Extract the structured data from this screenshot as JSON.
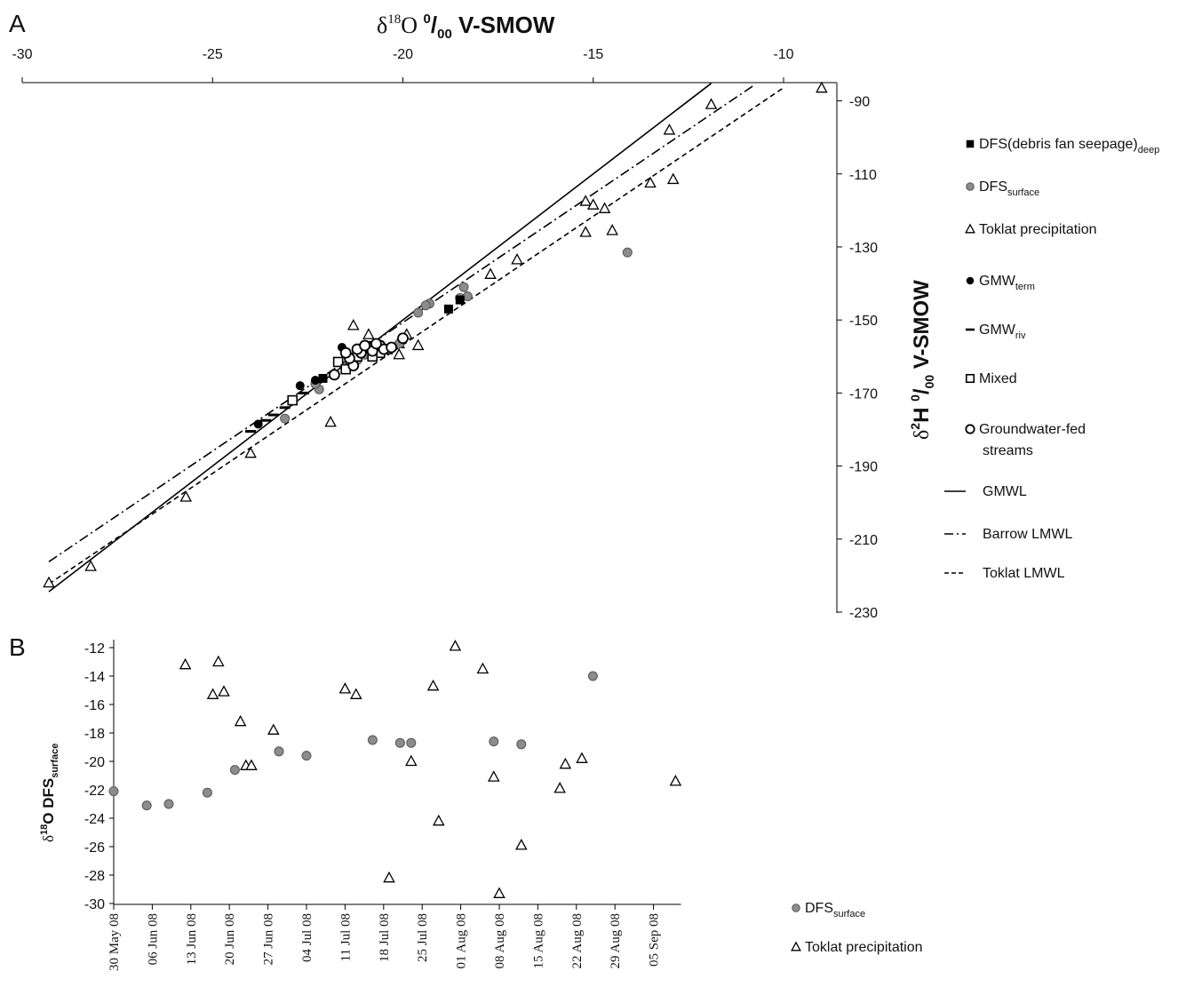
{
  "colors": {
    "axis": "#000000",
    "dfs_fill": "#8c8c8c",
    "dfs_stroke": "#555555",
    "black": "#000000",
    "white": "#ffffff"
  },
  "panel_a": {
    "label": "A",
    "top_axis_title": {
      "delta": "δ",
      "sup": "18",
      "elem": "O ",
      "permil_sup": "0",
      "permil_slash": "/",
      "permil_sub": "00",
      "tail": " V-SMOW"
    },
    "right_axis_title": {
      "delta": "δ",
      "sup": "2",
      "elem": "H ",
      "permil_sup": "0",
      "permil_slash": "/",
      "permil_sub": "00",
      "tail": " V-SMOW"
    }
  },
  "panel_b": {
    "label": "B",
    "y_axis_title": {
      "delta": "δ",
      "sup": "18",
      "elem": "O DFS",
      "sub": "surface"
    }
  },
  "legend_a": [
    {
      "key": "dfs_deep",
      "marker": "square-black",
      "text": "DFS(debris fan seepage)",
      "sub": "deep"
    },
    {
      "key": "dfs_surface",
      "marker": "circle-gray",
      "text": "DFS",
      "sub": "surface"
    },
    {
      "key": "toklat",
      "marker": "triangle",
      "text": "Toklat precipitation",
      "sub": ""
    },
    {
      "key": "gmw_term",
      "marker": "circle-black",
      "text": "GMW",
      "sub": "term"
    },
    {
      "key": "gmw_riv",
      "marker": "dash",
      "text": "GMW",
      "sub": "riv"
    },
    {
      "key": "mixed",
      "marker": "square-open",
      "text": "Mixed",
      "sub": ""
    },
    {
      "key": "gw_streams",
      "marker": "circle-open",
      "text": "Groundwater-fed",
      "text2": "streams",
      "sub": ""
    },
    {
      "key": "gmwl",
      "marker": "line-solid",
      "text": "GMWL",
      "sub": ""
    },
    {
      "key": "barrow",
      "marker": "line-dashdot",
      "text": "Barrow LMWL",
      "sub": ""
    },
    {
      "key": "toklat_lmwl",
      "marker": "line-dashed",
      "text": "Toklat LMWL",
      "sub": ""
    }
  ],
  "legend_b": [
    {
      "key": "dfs_surface",
      "marker": "circle-gray",
      "text": "DFS",
      "sub": "surface"
    },
    {
      "key": "toklat",
      "marker": "triangle",
      "text": "Toklat precipitation",
      "sub": ""
    }
  ],
  "chart_data": [
    {
      "type": "scatter",
      "panel": "A",
      "xlabel": "δ18O ‰ V-SMOW",
      "ylabel": "δ2H ‰ V-SMOW",
      "x_axis_position": "top",
      "y_axis_position": "right",
      "xlim": [
        -30,
        -8.5
      ],
      "ylim": [
        -230,
        -85
      ],
      "x_ticks": [
        -30,
        -25,
        -20,
        -15,
        -10
      ],
      "y_ticks": [
        -90,
        -110,
        -130,
        -150,
        -170,
        -190,
        -210,
        -230
      ],
      "legend_position": "right",
      "lines": [
        {
          "name": "GMWL",
          "style": "solid",
          "x": [
            -29.3,
            -11.9
          ],
          "y": [
            -224.4,
            -85.2
          ]
        },
        {
          "name": "Barrow LMWL",
          "style": "dash-dot",
          "x": [
            -29.3,
            -10.8
          ],
          "y": [
            -216.2,
            -85.9
          ]
        },
        {
          "name": "Toklat LMWL",
          "style": "dashed",
          "x": [
            -29.3,
            -10.0
          ],
          "y": [
            -222.3,
            -86.4
          ]
        }
      ],
      "series": [
        {
          "name": "DFS(debris fan seepage) deep",
          "marker": "square-black",
          "points": [
            [
              -18.8,
              -147.0
            ],
            [
              -18.5,
              -144.5
            ],
            [
              -20.9,
              -157.0
            ],
            [
              -22.1,
              -166.0
            ]
          ]
        },
        {
          "name": "DFS surface",
          "marker": "circle-gray",
          "points": [
            [
              -18.4,
              -141.0
            ],
            [
              -18.3,
              -143.5
            ],
            [
              -18.5,
              -144.0
            ],
            [
              -19.3,
              -145.5
            ],
            [
              -19.6,
              -148.0
            ],
            [
              -19.4,
              -146.0
            ],
            [
              -20.1,
              -156.5
            ],
            [
              -21.2,
              -161.0
            ],
            [
              -22.2,
              -169.0
            ],
            [
              -23.1,
              -177.0
            ],
            [
              -14.1,
              -131.5
            ],
            [
              -22.3,
              -167.5
            ],
            [
              -21.0,
              -159.5
            ]
          ]
        },
        {
          "name": "Toklat precipitation",
          "marker": "triangle",
          "points": [
            [
              -9.0,
              -86.5
            ],
            [
              -11.9,
              -91.0
            ],
            [
              -13.0,
              -98.0
            ],
            [
              -13.5,
              -112.5
            ],
            [
              -12.9,
              -111.5
            ],
            [
              -15.2,
              -117.5
            ],
            [
              -15.0,
              -118.5
            ],
            [
              -14.7,
              -119.5
            ],
            [
              -14.5,
              -125.5
            ],
            [
              -15.2,
              -126.0
            ],
            [
              -17.0,
              -133.5
            ],
            [
              -17.7,
              -137.5
            ],
            [
              -19.6,
              -157.0
            ],
            [
              -20.1,
              -159.5
            ],
            [
              -20.1,
              -156.5
            ],
            [
              -19.9,
              -154.0
            ],
            [
              -21.3,
              -151.5
            ],
            [
              -20.9,
              -154.0
            ],
            [
              -21.9,
              -178.0
            ],
            [
              -24.0,
              -186.5
            ],
            [
              -25.7,
              -198.5
            ],
            [
              -28.2,
              -217.5
            ],
            [
              -29.3,
              -222.0
            ]
          ]
        },
        {
          "name": "GMW term",
          "marker": "circle-black",
          "points": [
            [
              -21.6,
              -157.5
            ],
            [
              -22.7,
              -168.0
            ],
            [
              -23.8,
              -178.5
            ],
            [
              -22.3,
              -166.5
            ]
          ]
        },
        {
          "name": "GMW riv",
          "marker": "dash",
          "points": [
            [
              -24.0,
              -180.5
            ],
            [
              -23.6,
              -177.5
            ],
            [
              -23.4,
              -176.0
            ],
            [
              -23.1,
              -174.0
            ],
            [
              -22.6,
              -170.0
            ]
          ]
        },
        {
          "name": "Mixed",
          "marker": "square-open",
          "points": [
            [
              -21.7,
              -161.5
            ],
            [
              -21.5,
              -163.5
            ],
            [
              -22.9,
              -172.0
            ],
            [
              -21.2,
              -160.0
            ],
            [
              -20.6,
              -159.0
            ],
            [
              -20.8,
              -160.0
            ],
            [
              -20.4,
              -158.0
            ]
          ]
        },
        {
          "name": "Groundwater-fed streams",
          "marker": "circle-open",
          "points": [
            [
              -21.8,
              -165.0
            ],
            [
              -21.3,
              -162.5
            ],
            [
              -21.4,
              -160.5
            ],
            [
              -21.1,
              -159.0
            ],
            [
              -21.2,
              -158.0
            ],
            [
              -20.9,
              -157.5
            ],
            [
              -20.8,
              -158.5
            ],
            [
              -20.6,
              -157.0
            ],
            [
              -20.5,
              -158.0
            ],
            [
              -20.3,
              -157.5
            ],
            [
              -20.0,
              -155.0
            ],
            [
              -21.0,
              -157.0
            ],
            [
              -21.5,
              -159.0
            ],
            [
              -20.7,
              -156.5
            ]
          ]
        }
      ]
    },
    {
      "type": "scatter",
      "panel": "B",
      "ylabel": "δ18O DFS surface",
      "ylim": [
        -30,
        -11
      ],
      "y_ticks": [
        -12,
        -14,
        -16,
        -18,
        -20,
        -22,
        -24,
        -26,
        -28,
        -30
      ],
      "x_ticks": [
        "30 May 08",
        "06 Jun 08",
        "13 Jun 08",
        "20 Jun 08",
        "27 Jun 08",
        "04 Jul 08",
        "11 Jul 08",
        "18 Jul 08",
        "25 Jul 08",
        "01 Aug 08",
        "08 Aug 08",
        "15 Aug 08",
        "22 Aug 08",
        "29 Aug 08",
        "05 Sep 08"
      ],
      "x_domain": [
        "2008-05-30",
        "2008-09-10"
      ],
      "legend_position": "bottom-right",
      "series": [
        {
          "name": "DFS surface",
          "marker": "circle-gray",
          "points": [
            [
              "2008-05-30",
              -22.1
            ],
            [
              "2008-06-05",
              -23.1
            ],
            [
              "2008-06-09",
              -23.0
            ],
            [
              "2008-06-16",
              -22.2
            ],
            [
              "2008-06-21",
              -20.6
            ],
            [
              "2008-06-29",
              -19.3
            ],
            [
              "2008-07-04",
              -19.6
            ],
            [
              "2008-07-16",
              -18.5
            ],
            [
              "2008-07-21",
              -18.7
            ],
            [
              "2008-07-23",
              -18.7
            ],
            [
              "2008-08-07",
              -18.6
            ],
            [
              "2008-08-12",
              -18.8
            ],
            [
              "2008-08-25",
              -14.0
            ]
          ]
        },
        {
          "name": "Toklat precipitation",
          "marker": "triangle",
          "points": [
            [
              "2008-06-12",
              -13.2
            ],
            [
              "2008-06-17",
              -15.3
            ],
            [
              "2008-06-18",
              -13.0
            ],
            [
              "2008-06-19",
              -15.1
            ],
            [
              "2008-06-22",
              -17.2
            ],
            [
              "2008-06-23",
              -20.3
            ],
            [
              "2008-06-24",
              -20.3
            ],
            [
              "2008-06-28",
              -17.8
            ],
            [
              "2008-07-11",
              -14.9
            ],
            [
              "2008-07-13",
              -15.3
            ],
            [
              "2008-07-19",
              -28.2
            ],
            [
              "2008-07-23",
              -20.0
            ],
            [
              "2008-07-27",
              -14.7
            ],
            [
              "2008-07-28",
              -24.2
            ],
            [
              "2008-07-31",
              -11.9
            ],
            [
              "2008-08-05",
              -13.5
            ],
            [
              "2008-08-07",
              -21.1
            ],
            [
              "2008-08-08",
              -29.3
            ],
            [
              "2008-08-12",
              -25.9
            ],
            [
              "2008-08-19",
              -21.9
            ],
            [
              "2008-08-20",
              -20.2
            ],
            [
              "2008-08-23",
              -19.8
            ],
            [
              "2008-09-09",
              -21.4
            ]
          ]
        }
      ]
    }
  ]
}
